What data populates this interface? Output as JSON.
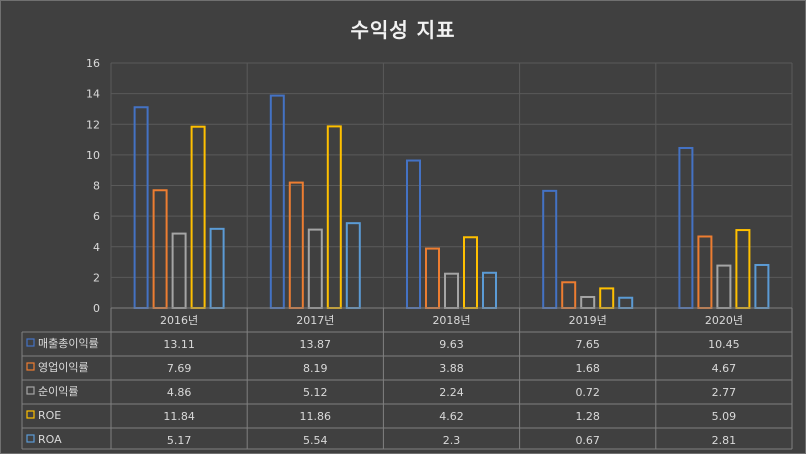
{
  "chart_data": {
    "type": "bar",
    "title": "수익성 지표",
    "categories": [
      "2016년",
      "2017년",
      "2018년",
      "2019년",
      "2020년"
    ],
    "series": [
      {
        "name": "매출총이익률",
        "values": [
          13.11,
          13.87,
          9.63,
          7.65,
          10.45
        ],
        "color": "#4472c4"
      },
      {
        "name": "영업이익률",
        "values": [
          7.69,
          8.19,
          3.88,
          1.68,
          4.67
        ],
        "color": "#ed7d31"
      },
      {
        "name": "순이익률",
        "values": [
          4.86,
          5.12,
          2.24,
          0.72,
          2.77
        ],
        "color": "#a5a5a5"
      },
      {
        "name": "ROE",
        "values": [
          11.84,
          11.86,
          4.62,
          1.28,
          5.09
        ],
        "color": "#ffc000"
      },
      {
        "name": "ROA",
        "values": [
          5.17,
          5.54,
          2.3,
          0.67,
          2.81
        ],
        "color": "#5b9bd5"
      }
    ],
    "value_labels": [
      [
        "13.11",
        "13.87",
        "9.63",
        "7.65",
        "10.45"
      ],
      [
        "7.69",
        "8.19",
        "3.88",
        "1.68",
        "4.67"
      ],
      [
        "4.86",
        "5.12",
        "2.24",
        "0.72",
        "2.77"
      ],
      [
        "11.84",
        "11.86",
        "4.62",
        "1.28",
        "5.09"
      ],
      [
        "5.17",
        "5.54",
        "2.3",
        "0.67",
        "2.81"
      ]
    ],
    "ylim": [
      0,
      16
    ],
    "yticks": [
      0,
      2,
      4,
      6,
      8,
      10,
      12,
      14,
      16
    ],
    "grid": true,
    "legend": "data-table"
  }
}
